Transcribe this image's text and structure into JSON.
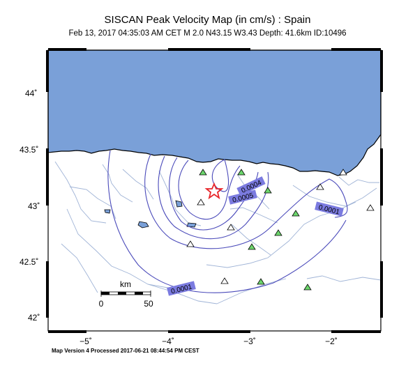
{
  "header": {
    "title": "SISCAN Peak Velocity Map (in cm/s) : Spain",
    "subtitle": "Feb 13, 2017 04:35:03 AM CET   M 2.0   N43.15 W3.43   Depth: 41.6km   ID:10496"
  },
  "map": {
    "lat_ticks": [
      "44˚",
      "43.5˚",
      "43˚",
      "42.5˚",
      "42˚"
    ],
    "lon_ticks": [
      "−5˚",
      "−4˚",
      "−3˚",
      "−2˚"
    ],
    "contour_labels": [
      "0.0004",
      "0.0005",
      "0.0001",
      "0.0001"
    ],
    "scale_bar": {
      "unit": "km",
      "start": "0",
      "end": "50"
    },
    "colors": {
      "sea": "#7aa0d8",
      "land": "#ffffff",
      "contour": "#4a4aba",
      "label_box": "#7b7be0",
      "river": "#9fb3d6",
      "epicenter": "#e8262a",
      "station_green": "#6cd66c",
      "station_white": "#ffffff"
    },
    "epicenter": {
      "lat": 43.15,
      "lon": -3.43,
      "icon": "star-icon"
    }
  },
  "footer": {
    "text": "Map Version 4 Processed 2017-06-21 08:44:54 PM CEST"
  }
}
